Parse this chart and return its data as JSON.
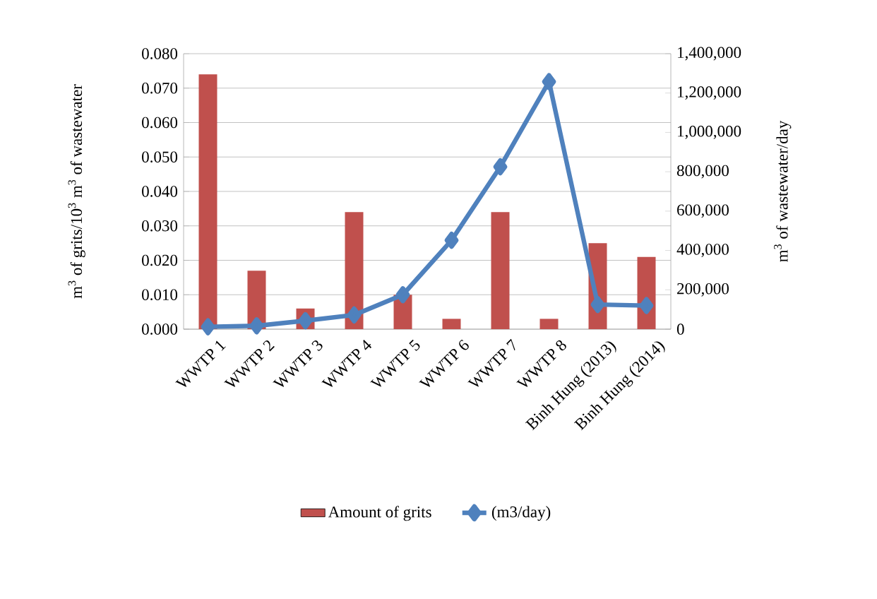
{
  "chart_data": {
    "type": "bar",
    "categories": [
      "WWTP 1",
      "WWTP 2",
      "WWTP 3",
      "WWTP 4",
      "WWTP 5",
      "WWTP 6",
      "WWTP 7",
      "WWTP 8",
      "Binh Hung (2013)",
      "Binh Hung (2014)"
    ],
    "series": [
      {
        "name": "Amount of grits",
        "type": "bar",
        "color": "#c0504d",
        "values": [
          0.074,
          0.017,
          0.006,
          0.034,
          0.01,
          0.003,
          0.034,
          0.003,
          0.025,
          0.021
        ]
      },
      {
        "name": "(m3/day)",
        "type": "line",
        "axis": "y2",
        "color": "#4f81bd",
        "marker": "diamond",
        "values": [
          12000,
          17000,
          43000,
          72000,
          175000,
          452000,
          825000,
          1258000,
          125000,
          120000
        ]
      }
    ],
    "ylabel": "m$^{3}$ of grits/10$^{3}$ m$^{3}$ of wastewater",
    "y2label": "m$^{3}$ of wastewater/day",
    "ylim": [
      0,
      0.08
    ],
    "yticks": [
      {
        "value": 0,
        "label": "0.000"
      },
      {
        "value": 0.01,
        "label": "0.010"
      },
      {
        "value": 0.02,
        "label": "0.020"
      },
      {
        "value": 0.03,
        "label": "0.030"
      },
      {
        "value": 0.04,
        "label": "0.040"
      },
      {
        "value": 0.05,
        "label": "0.050"
      },
      {
        "value": 0.06,
        "label": "0.060"
      },
      {
        "value": 0.07,
        "label": "0.070"
      },
      {
        "value": 0.08,
        "label": "0.080"
      }
    ],
    "y2lim": [
      0,
      1400000
    ],
    "y2ticks": [
      0,
      {
        "value": 200000,
        "label": "200,000"
      },
      {
        "value": 400000,
        "label": "400,000"
      },
      {
        "value": 600000,
        "label": "600,000"
      },
      {
        "value": 800000,
        "label": "800,000"
      },
      {
        "value": 1000000,
        "label": "1,000,000"
      },
      {
        "value": 1200000,
        "label": "1,200,000"
      },
      {
        "value": 1400000,
        "label": "1,400,000"
      }
    ],
    "grid": "y",
    "legend": "bottom"
  }
}
